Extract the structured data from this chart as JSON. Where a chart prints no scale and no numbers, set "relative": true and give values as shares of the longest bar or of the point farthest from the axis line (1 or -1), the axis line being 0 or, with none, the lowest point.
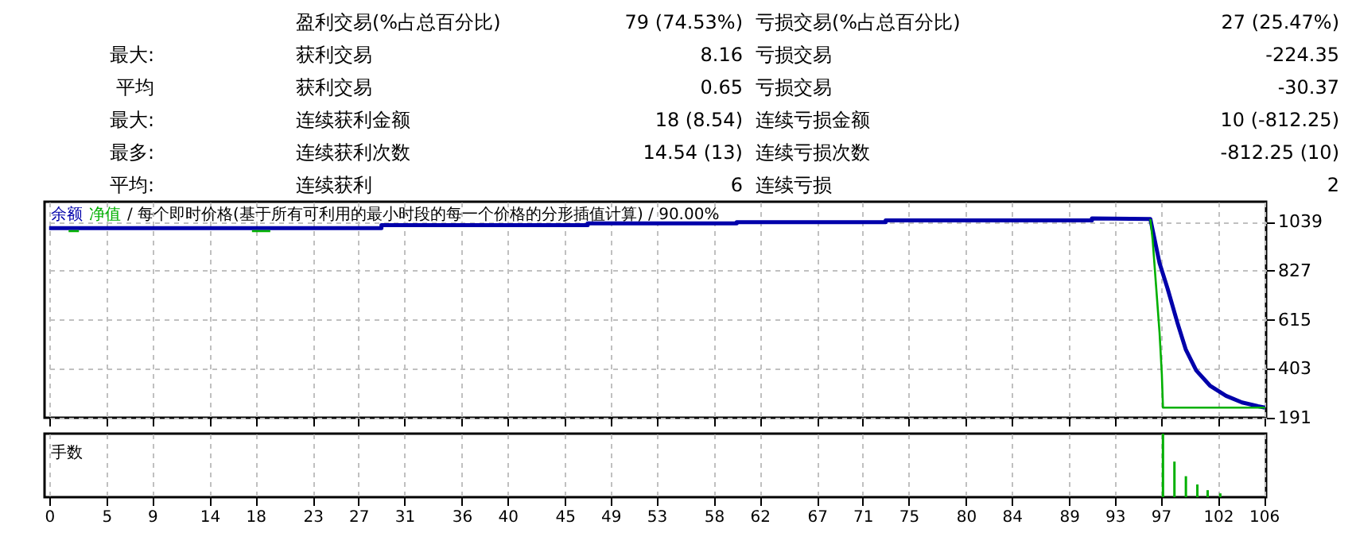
{
  "chart_data": [
    {
      "type": "other",
      "annotations": [
        "盈利交易(%占总百分比)",
        "79 (74.53%)",
        "亏损交易(%占总百分比)",
        "27 (25.47%)",
        "最大:",
        "获利交易",
        "8.16",
        "亏损交易",
        "-224.35",
        "平均",
        "获利交易",
        "0.65",
        "亏损交易",
        "-30.37",
        "最大:",
        "连续获利金额",
        "18 (8.54)",
        "连续亏损金额",
        "10 (-812.25)",
        "最多:",
        "连续获利次数",
        "14.54 (13)",
        "连续亏损次数",
        "-812.25 (10)",
        "平均:",
        "连续获利",
        "6",
        "连续亏损",
        "2"
      ]
    },
    {
      "type": "line",
      "title": "/ 每个即时价格(基于所有可利用的最小时段的每一个价格的分形插值计算) / 90.00%",
      "legend": "top left",
      "grid": true,
      "tick_labels": "y",
      "xlim": [
        -0.4,
        106.2
      ],
      "ylim": [
        191,
        1125
      ],
      "yticks": [
        191,
        403,
        615,
        827,
        1039
      ],
      "xticks": [
        0,
        5,
        9,
        14,
        18,
        23,
        27,
        31,
        36,
        40,
        45,
        49,
        53,
        58,
        62,
        67,
        71,
        75,
        80,
        84,
        89,
        93,
        97,
        102,
        106
      ],
      "series": [
        {
          "name": "余额",
          "color": "#0000aa",
          "x": [
            0,
            29,
            29,
            47,
            47,
            60,
            60,
            73,
            73,
            91,
            91,
            96.1,
            96.9,
            97.6,
            98.5,
            99.2,
            100.1,
            101.3,
            102.7,
            104.1,
            105.5,
            106.1
          ],
          "values": [
            1011,
            1011,
            1024,
            1024,
            1031,
            1031,
            1037,
            1037,
            1044,
            1044,
            1053,
            1050,
            860,
            750,
            595,
            485,
            396,
            330,
            286,
            257,
            241,
            235
          ]
        },
        {
          "name": "净值",
          "color": "#00b000",
          "x": [
            1.7,
            2.6,
            3.4,
            17.7,
            19.3,
            20.5,
            96.1,
            96.3,
            96.6,
            96.9,
            97.1,
            97.2,
            106.1
          ],
          "values": [
            998,
            998,
            null,
            998,
            998,
            null,
            1050,
            960,
            760,
            560,
            380,
            235,
            235
          ]
        }
      ]
    },
    {
      "type": "bar",
      "title": "手数",
      "relative": true,
      "grid": "x",
      "tick_labels": "x",
      "color": "#00b000",
      "xlim": [
        -0.4,
        106.2
      ],
      "xticks": [
        0,
        5,
        9,
        14,
        18,
        23,
        27,
        31,
        36,
        40,
        45,
        49,
        53,
        58,
        62,
        67,
        71,
        75,
        80,
        84,
        89,
        93,
        97,
        102,
        106
      ],
      "x": [
        97.2,
        98.2,
        99.2,
        100.2,
        101.1,
        102.2
      ],
      "values": [
        1,
        0.56,
        0.33,
        0.2,
        0.11,
        0.06
      ]
    }
  ]
}
